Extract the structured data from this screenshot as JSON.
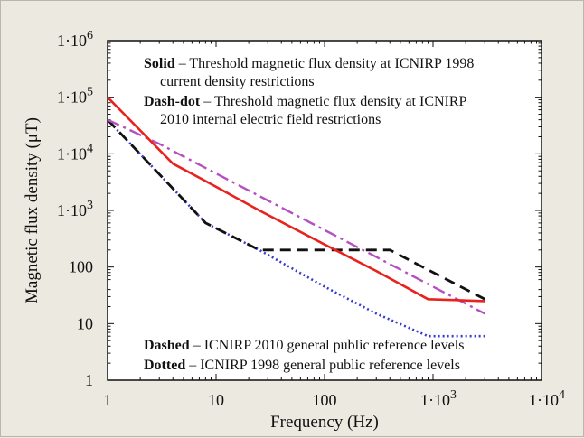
{
  "chart_data": {
    "type": "line",
    "title": "",
    "xlabel": "Frequency (Hz)",
    "ylabel": "Magnetic flux density (μT)",
    "xscale": "log",
    "yscale": "log",
    "xlim": [
      1,
      10000
    ],
    "ylim": [
      1,
      1000000
    ],
    "grid": false,
    "x_ticks": [
      {
        "value": 1,
        "label": "1"
      },
      {
        "value": 10,
        "label": "10"
      },
      {
        "value": 100,
        "label": "100"
      },
      {
        "value": 1000,
        "label": "1·10",
        "sup": "3"
      },
      {
        "value": 10000,
        "label": "1·10",
        "sup": "4"
      }
    ],
    "y_ticks": [
      {
        "value": 1,
        "label": "1"
      },
      {
        "value": 10,
        "label": "10"
      },
      {
        "value": 100,
        "label": "100"
      },
      {
        "value": 1000,
        "label": "1·10",
        "sup": "3"
      },
      {
        "value": 10000,
        "label": "1·10",
        "sup": "4"
      },
      {
        "value": 100000,
        "label": "1·10",
        "sup": "5"
      },
      {
        "value": 1000000,
        "label": "1·10",
        "sup": "6"
      }
    ],
    "series": [
      {
        "style": "solid",
        "color": "#e8231f",
        "points": [
          [
            1,
            100000
          ],
          [
            4,
            6700
          ],
          [
            8,
            3300
          ],
          [
            25,
            1000
          ],
          [
            100,
            250
          ],
          [
            300,
            85
          ],
          [
            900,
            27
          ],
          [
            3000,
            25
          ]
        ]
      },
      {
        "style": "dash-dot",
        "color": "#b64fc1",
        "points": [
          [
            1,
            40000
          ],
          [
            3,
            15000
          ],
          [
            10,
            4500
          ],
          [
            30,
            1500
          ],
          [
            100,
            450
          ],
          [
            300,
            150
          ],
          [
            1000,
            45
          ],
          [
            3000,
            15
          ]
        ]
      },
      {
        "style": "dashed",
        "color": "#111111",
        "points": [
          [
            1,
            40000
          ],
          [
            8,
            600
          ],
          [
            25,
            200
          ],
          [
            400,
            200
          ],
          [
            3000,
            27
          ]
        ]
      },
      {
        "style": "dotted",
        "color": "#3a3ad0",
        "points": [
          [
            1,
            40000
          ],
          [
            8,
            600
          ],
          [
            25,
            200
          ],
          [
            100,
            45
          ],
          [
            300,
            15
          ],
          [
            900,
            6
          ],
          [
            3000,
            6
          ]
        ]
      }
    ],
    "annotations": [
      {
        "bold": "Solid",
        "text": " – Threshold magnetic flux density at ICNIRP 1998",
        "cont": "current density restrictions"
      },
      {
        "bold": "Dash-dot",
        "text": " – Threshold magnetic flux density at ICNIRP",
        "cont": "2010 internal electric field restrictions"
      },
      {
        "bold": "Dashed",
        "text": " – ICNIRP 2010 general public reference levels",
        "cont": ""
      },
      {
        "bold": "Dotted",
        "text": " – ICNIRP 1998 general public reference levels",
        "cont": ""
      }
    ]
  }
}
